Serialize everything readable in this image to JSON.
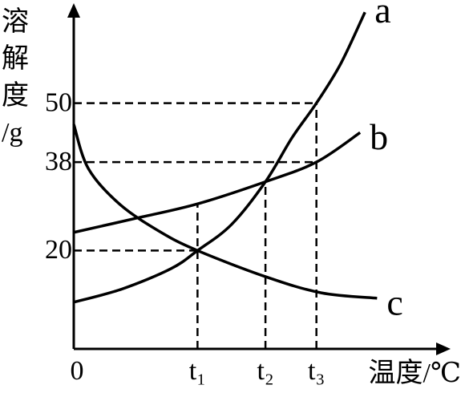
{
  "chart_data": {
    "type": "line",
    "y_label_lines": [
      "溶",
      "解",
      "度",
      "/g"
    ],
    "x_label": "温度/℃",
    "xlim": [
      0,
      150
    ],
    "ylim": [
      0,
      70
    ],
    "xticks": [
      0,
      {
        "value": 51,
        "label": "t₁"
      },
      {
        "value": 79,
        "label": "t₂"
      },
      {
        "value": 100,
        "label": "t₃"
      }
    ],
    "yticks": [
      20,
      38,
      50
    ],
    "grid": false,
    "series": [
      {
        "name": "a",
        "color": "#000000",
        "x": [
          0,
          20,
          40,
          51,
          65,
          79,
          90,
          100,
          110,
          120
        ],
        "values": [
          9.5,
          12.2,
          16.3,
          20,
          25.3,
          34,
          43,
          50,
          58,
          68.5
        ]
      },
      {
        "name": "b",
        "color": "#000000",
        "x": [
          0,
          25,
          51,
          79,
          100,
          118
        ],
        "values": [
          23.7,
          26.5,
          29.5,
          34,
          38,
          44
        ]
      },
      {
        "name": "c",
        "color": "#000000",
        "x": [
          0,
          6,
          19,
          36,
          51,
          79,
          102,
          125
        ],
        "values": [
          45.7,
          36.7,
          29.4,
          23.7,
          20,
          14.7,
          11.4,
          10.3
        ]
      }
    ]
  }
}
